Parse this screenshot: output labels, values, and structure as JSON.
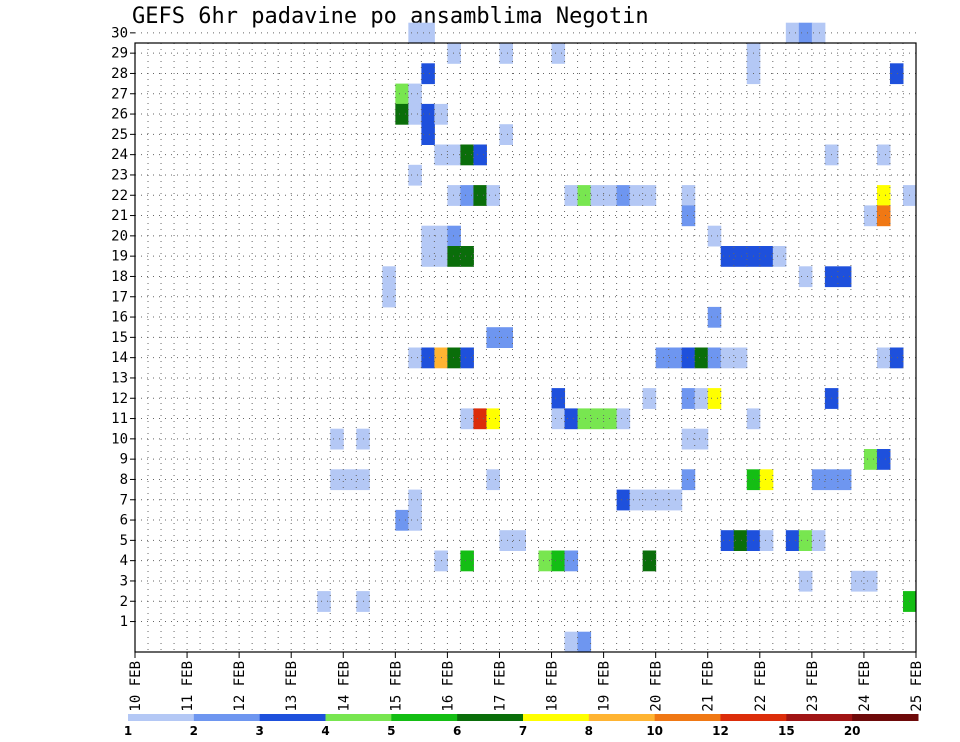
{
  "chart_data": {
    "type": "heatmap",
    "title": "GEFS 6hr padavine po ansamblima Negotin",
    "xlabel": "",
    "ylabel": "",
    "x_tick_labels": [
      "10 FEB",
      "11 FEB",
      "12 FEB",
      "13 FEB",
      "14 FEB",
      "15 FEB",
      "16 FEB",
      "17 FEB",
      "18 FEB",
      "19 FEB",
      "20 FEB",
      "21 FEB",
      "22 FEB",
      "23 FEB",
      "24 FEB",
      "25 FEB"
    ],
    "x_range_days": [
      0,
      15
    ],
    "y_tick_labels": [
      "1",
      "2",
      "3",
      "4",
      "5",
      "6",
      "7",
      "8",
      "9",
      "10",
      "11",
      "12",
      "13",
      "14",
      "15",
      "16",
      "17",
      "18",
      "19",
      "20",
      "21",
      "22",
      "23",
      "24",
      "25",
      "26",
      "27",
      "28",
      "29",
      "30"
    ],
    "y_range": [
      0,
      30
    ],
    "grid": true,
    "colorbar": {
      "labels": [
        "1",
        "2",
        "3",
        "4",
        "5",
        "6",
        "7",
        "8",
        "10",
        "12",
        "15",
        "20"
      ],
      "colors": [
        "#b4c8f5",
        "#6e96f0",
        "#1e50dc",
        "#78e650",
        "#14be14",
        "#0a6e0a",
        "#ffff00",
        "#ffb432",
        "#f07814",
        "#dc2d0a",
        "#a01414",
        "#6e0a0a"
      ]
    },
    "cells_legend": "[member, day_offset_from_10_FEB, color_class 1-12]",
    "cells": [
      [
        30,
        5.25,
        1
      ],
      [
        30,
        5.5,
        1
      ],
      [
        30,
        12.5,
        1
      ],
      [
        30,
        12.75,
        2
      ],
      [
        30,
        13,
        1
      ],
      [
        29,
        6,
        1
      ],
      [
        29,
        7,
        1
      ],
      [
        29,
        8,
        1
      ],
      [
        29,
        11.75,
        1
      ],
      [
        28,
        5.5,
        3
      ],
      [
        28,
        11.75,
        1
      ],
      [
        28,
        14.5,
        3
      ],
      [
        27,
        5,
        4
      ],
      [
        27,
        5.25,
        1
      ],
      [
        26,
        5,
        6
      ],
      [
        26,
        5.25,
        1
      ],
      [
        26,
        5.5,
        3
      ],
      [
        26,
        5.75,
        1
      ],
      [
        25,
        5.5,
        3
      ],
      [
        25,
        7,
        1
      ],
      [
        24,
        5.75,
        1
      ],
      [
        24,
        6,
        1
      ],
      [
        24,
        6.25,
        6
      ],
      [
        24,
        6.5,
        3
      ],
      [
        24,
        13.25,
        1
      ],
      [
        24,
        14.25,
        1
      ],
      [
        23,
        5.25,
        1
      ],
      [
        22,
        6,
        1
      ],
      [
        22,
        6.25,
        2
      ],
      [
        22,
        6.5,
        6
      ],
      [
        22,
        6.75,
        1
      ],
      [
        22,
        8.25,
        1
      ],
      [
        22,
        8.5,
        4
      ],
      [
        22,
        8.75,
        1
      ],
      [
        22,
        9,
        1
      ],
      [
        22,
        9.25,
        2
      ],
      [
        22,
        9.5,
        1
      ],
      [
        22,
        9.75,
        1
      ],
      [
        22,
        10.5,
        1
      ],
      [
        22,
        14.25,
        7
      ],
      [
        22,
        14.75,
        1
      ],
      [
        21,
        10.5,
        2
      ],
      [
        21,
        14,
        1
      ],
      [
        21,
        14.25,
        9
      ],
      [
        20,
        5.5,
        1
      ],
      [
        20,
        5.75,
        1
      ],
      [
        20,
        6,
        2
      ],
      [
        20,
        11,
        1
      ],
      [
        19,
        5.5,
        1
      ],
      [
        19,
        5.75,
        1
      ],
      [
        19,
        6,
        6
      ],
      [
        19,
        6.25,
        6
      ],
      [
        19,
        11.25,
        3
      ],
      [
        19,
        11.5,
        3
      ],
      [
        19,
        11.75,
        3
      ],
      [
        19,
        12,
        3
      ],
      [
        19,
        12.25,
        1
      ],
      [
        18,
        4.75,
        1
      ],
      [
        18,
        12.75,
        1
      ],
      [
        18,
        13.25,
        3
      ],
      [
        18,
        13.5,
        3
      ],
      [
        17,
        4.75,
        1
      ],
      [
        16,
        11,
        2
      ],
      [
        15,
        6.75,
        2
      ],
      [
        15,
        7,
        2
      ],
      [
        14,
        5.25,
        1
      ],
      [
        14,
        5.5,
        3
      ],
      [
        14,
        5.75,
        8
      ],
      [
        14,
        6,
        6
      ],
      [
        14,
        6.25,
        3
      ],
      [
        14,
        10,
        2
      ],
      [
        14,
        10.25,
        2
      ],
      [
        14,
        10.5,
        3
      ],
      [
        14,
        10.75,
        6
      ],
      [
        14,
        11,
        2
      ],
      [
        14,
        11.25,
        1
      ],
      [
        14,
        11.5,
        1
      ],
      [
        14,
        14.25,
        1
      ],
      [
        14,
        14.5,
        3
      ],
      [
        12,
        8,
        3
      ],
      [
        12,
        9.75,
        1
      ],
      [
        12,
        10.5,
        2
      ],
      [
        12,
        10.75,
        1
      ],
      [
        12,
        11,
        7
      ],
      [
        12,
        13.25,
        3
      ],
      [
        11,
        6.25,
        1
      ],
      [
        11,
        6.5,
        10
      ],
      [
        11,
        6.75,
        7
      ],
      [
        11,
        8,
        1
      ],
      [
        11,
        8.25,
        3
      ],
      [
        11,
        8.5,
        4
      ],
      [
        11,
        8.75,
        4
      ],
      [
        11,
        9,
        4
      ],
      [
        11,
        9.25,
        1
      ],
      [
        11,
        11.75,
        1
      ],
      [
        10,
        3.75,
        1
      ],
      [
        10,
        4.25,
        1
      ],
      [
        10,
        10.5,
        1
      ],
      [
        10,
        10.75,
        1
      ],
      [
        9,
        14,
        4
      ],
      [
        9,
        14.25,
        3
      ],
      [
        8,
        3.75,
        1
      ],
      [
        8,
        4,
        1
      ],
      [
        8,
        4.25,
        1
      ],
      [
        8,
        6.75,
        1
      ],
      [
        8,
        10.5,
        2
      ],
      [
        8,
        11.75,
        5
      ],
      [
        8,
        12,
        7
      ],
      [
        8,
        13,
        2
      ],
      [
        8,
        13.25,
        2
      ],
      [
        8,
        13.5,
        2
      ],
      [
        7,
        5.25,
        1
      ],
      [
        7,
        9.25,
        3
      ],
      [
        7,
        9.5,
        1
      ],
      [
        7,
        9.75,
        1
      ],
      [
        7,
        10,
        1
      ],
      [
        7,
        10.25,
        1
      ],
      [
        6,
        5,
        2
      ],
      [
        6,
        5.25,
        1
      ],
      [
        5,
        7,
        1
      ],
      [
        5,
        7.25,
        1
      ],
      [
        5,
        11.25,
        3
      ],
      [
        5,
        11.5,
        6
      ],
      [
        5,
        11.75,
        3
      ],
      [
        5,
        12,
        1
      ],
      [
        5,
        12.5,
        3
      ],
      [
        5,
        12.75,
        4
      ],
      [
        5,
        13,
        1
      ],
      [
        4,
        5.75,
        1
      ],
      [
        4,
        6.25,
        5
      ],
      [
        4,
        7.75,
        4
      ],
      [
        4,
        8,
        5
      ],
      [
        4,
        8.25,
        2
      ],
      [
        4,
        9.75,
        6
      ],
      [
        3,
        12.75,
        1
      ],
      [
        3,
        13.75,
        1
      ],
      [
        3,
        14,
        1
      ],
      [
        2,
        3.5,
        1
      ],
      [
        2,
        4.25,
        1
      ],
      [
        2,
        14.75,
        5
      ],
      [
        0,
        8.25,
        1
      ],
      [
        0,
        8.5,
        2
      ]
    ]
  }
}
